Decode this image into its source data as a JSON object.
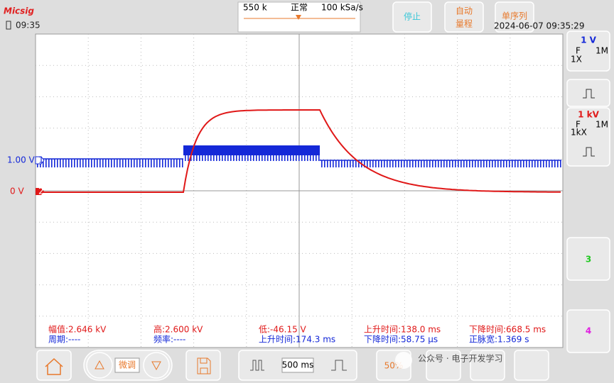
{
  "header": {
    "brand": "Micsig",
    "time": "09:35",
    "memory": "550 k",
    "mode": "正常",
    "sample_rate": "100 kSa/s",
    "stop": "停止",
    "auto_range": [
      "自动",
      "量程"
    ],
    "single": "单序列",
    "datetime": "2024-06-07 09:35:29"
  },
  "channels": [
    {
      "scale": "1 V",
      "coupling": "F",
      "impedance": "1M",
      "probe": "1X",
      "offset_label": "1.00 V",
      "marker": "1"
    },
    {
      "scale": "1 kV",
      "coupling": "F",
      "impedance": "1M",
      "probe": "1kX",
      "offset_label": "0 V",
      "marker": "2"
    },
    {
      "label": "3"
    },
    {
      "label": "4"
    }
  ],
  "measurements": [
    [
      "幅值:2.646 kV",
      "高:2.600 kV",
      "低:-46.15 V",
      "上升时间:138.0 ms",
      "下降时间:668.5 ms"
    ],
    [
      "周期:----",
      "频率:----",
      "上升时间:174.3 ms",
      "下降时间:58.75 μs",
      "正脉宽:1.369 s"
    ]
  ],
  "toolbar": {
    "fine": "微调",
    "timebase": "500 ms",
    "level": "50%"
  },
  "watermark": "公众号 · 电子开发学习"
}
